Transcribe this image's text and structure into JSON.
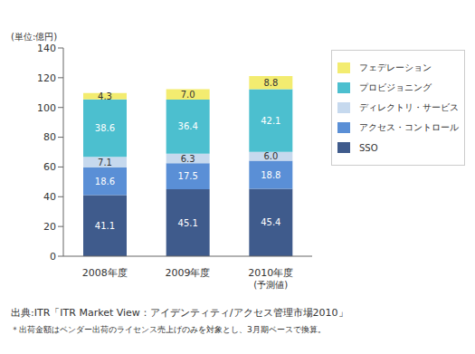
{
  "chart_data": {
    "type": "bar",
    "y_label": "(単位:億円)",
    "categories": [
      "2008年度",
      "2009年度",
      "2010年度\n(予測値)"
    ],
    "series": [
      {
        "name": "SSO",
        "color": "#3f5b8c",
        "values": [
          41.1,
          45.1,
          45.4
        ],
        "value_labels": [
          "41.1",
          "45.1",
          "45.4"
        ]
      },
      {
        "name": "アクセス・コントロール",
        "color": "#5a8fd6",
        "values": [
          18.6,
          17.5,
          18.8
        ],
        "value_labels": [
          "18.6",
          "17.5",
          "18.8"
        ]
      },
      {
        "name": "ディレクトリ・サービス",
        "color": "#c6d9ee",
        "values": [
          7.1,
          6.3,
          6.0
        ],
        "value_labels": [
          "7.1",
          "6.3",
          "6.0"
        ]
      },
      {
        "name": "プロビジョニング",
        "color": "#4cbfcf",
        "values": [
          38.6,
          36.4,
          42.1
        ],
        "value_labels": [
          "38.6",
          "36.4",
          "42.1"
        ]
      },
      {
        "name": "フェデレーション",
        "color": "#f3ec70",
        "values": [
          4.3,
          7.0,
          8.8
        ],
        "value_labels": [
          "4.3",
          "7.0",
          "8.8"
        ]
      }
    ],
    "ylim": [
      0,
      140
    ],
    "yticks": [
      0,
      20,
      40,
      60,
      80,
      100,
      120,
      140
    ],
    "grid": false,
    "stacked": true,
    "data_labels": true,
    "legend": "upper right",
    "annotations": [
      "出典:ITR「ITR Market View：アイデンティティ/アクセス管理市場2010」",
      "＊出荷金額はベンダー出荷のライセンス売上げのみを対象とし、3月期ベースで換算。"
    ]
  }
}
